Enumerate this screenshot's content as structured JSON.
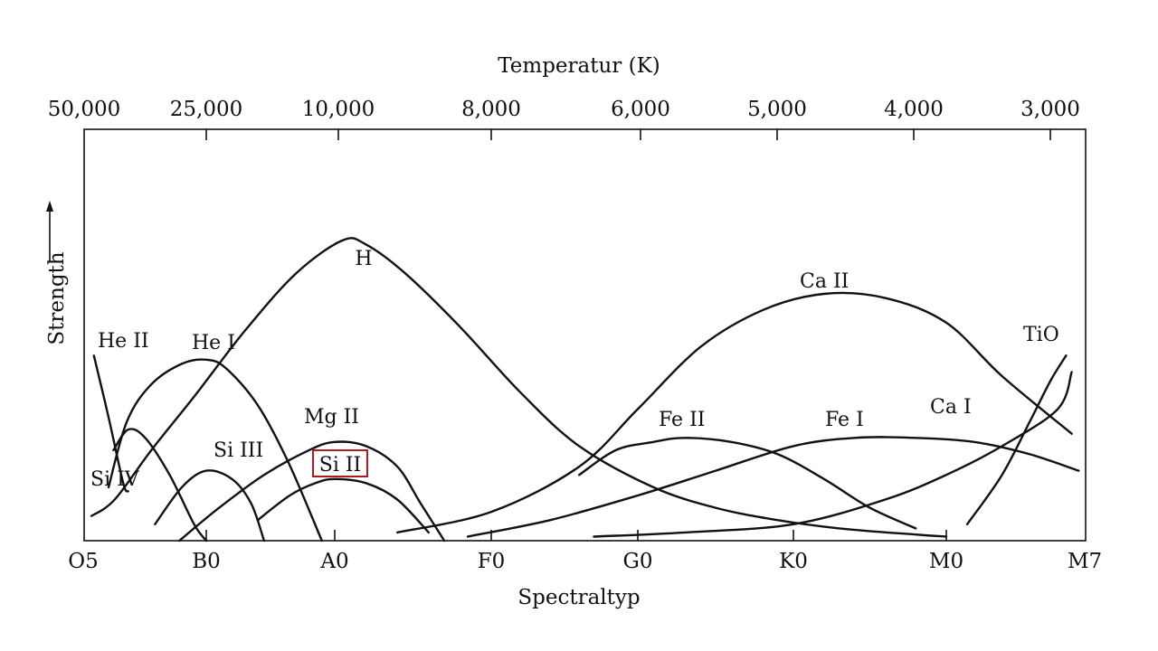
{
  "chart_data": {
    "type": "line",
    "title": "",
    "top_axis_title": "Temperatur (K)",
    "xlabel": "Spectraltyp",
    "ylabel": "Strength",
    "temperature_ticks": [
      "50,000",
      "25,000",
      "10,000",
      "8,000",
      "6,000",
      "5,000",
      "4,000",
      "3,000"
    ],
    "spectral_ticks": [
      "O5",
      "B0",
      "A0",
      "F0",
      "G0",
      "K0",
      "M0",
      "M7"
    ],
    "x_scale": "spectral subclass position (O5=0, B0=1, A0=2, F0=3, G0=4, K0=5, M0=6, M7=7)",
    "ylim": [
      0,
      1
    ],
    "highlighted_label": "Si II",
    "highlight_color": "#b01a1a",
    "series": [
      {
        "name": "He II",
        "x": [
          0.08,
          0.2,
          0.32,
          0.36
        ],
        "y": [
          0.45,
          0.3,
          0.14,
          0.12
        ]
      },
      {
        "name": "He I",
        "x": [
          0.2,
          0.35,
          0.55,
          0.8,
          1.0,
          1.15,
          1.4,
          1.64,
          1.9
        ],
        "y": [
          0.13,
          0.29,
          0.38,
          0.43,
          0.44,
          0.42,
          0.33,
          0.19,
          0.0
        ]
      },
      {
        "name": "Si IV",
        "x": [
          0.24,
          0.36,
          0.5,
          0.7,
          0.9,
          1.0
        ],
        "y": [
          0.22,
          0.27,
          0.25,
          0.16,
          0.04,
          0.0
        ]
      },
      {
        "name": "Si III",
        "x": [
          0.58,
          0.8,
          1.0,
          1.2,
          1.35,
          1.45
        ],
        "y": [
          0.04,
          0.13,
          0.17,
          0.15,
          0.09,
          0.0
        ]
      },
      {
        "name": "H",
        "x": [
          0.06,
          0.25,
          0.55,
          0.9,
          1.3,
          1.7,
          2.05,
          2.2,
          2.45,
          2.8,
          3.2,
          3.6,
          4.1,
          4.5,
          4.9,
          5.3,
          5.8,
          6.0
        ],
        "y": [
          0.06,
          0.1,
          0.22,
          0.35,
          0.51,
          0.65,
          0.73,
          0.72,
          0.65,
          0.52,
          0.36,
          0.23,
          0.13,
          0.08,
          0.05,
          0.03,
          0.015,
          0.01
        ]
      },
      {
        "name": "Mg II",
        "x": [
          0.78,
          1.1,
          1.45,
          1.8,
          2.0,
          2.2,
          2.4,
          2.55,
          2.7
        ],
        "y": [
          0.0,
          0.08,
          0.16,
          0.22,
          0.24,
          0.23,
          0.18,
          0.09,
          0.0
        ]
      },
      {
        "name": "Si II",
        "x": [
          1.4,
          1.65,
          1.85,
          2.0,
          2.2,
          2.4,
          2.6
        ],
        "y": [
          0.05,
          0.11,
          0.14,
          0.15,
          0.14,
          0.1,
          0.02
        ]
      },
      {
        "name": "Ca II",
        "x": [
          2.4,
          3.0,
          3.6,
          4.0,
          4.4,
          4.8,
          5.2,
          5.6,
          6.0,
          6.4,
          6.9
        ],
        "y": [
          0.02,
          0.07,
          0.18,
          0.32,
          0.47,
          0.56,
          0.6,
          0.59,
          0.53,
          0.4,
          0.26
        ]
      },
      {
        "name": "Fe II",
        "x": [
          3.6,
          3.85,
          4.1,
          4.3,
          4.6,
          4.9,
          5.2,
          5.5,
          5.8
        ],
        "y": [
          0.16,
          0.22,
          0.24,
          0.25,
          0.24,
          0.21,
          0.15,
          0.08,
          0.03
        ]
      },
      {
        "name": "Fe I",
        "x": [
          2.85,
          3.4,
          4.0,
          4.5,
          5.0,
          5.4,
          5.8,
          6.2,
          6.6,
          6.95
        ],
        "y": [
          0.01,
          0.05,
          0.11,
          0.17,
          0.23,
          0.25,
          0.25,
          0.24,
          0.21,
          0.17
        ]
      },
      {
        "name": "Ca I",
        "x": [
          3.7,
          4.3,
          5.0,
          5.6,
          6.0,
          6.4,
          6.8,
          6.9
        ],
        "y": [
          0.01,
          0.02,
          0.04,
          0.1,
          0.16,
          0.23,
          0.32,
          0.41
        ]
      },
      {
        "name": "TiO",
        "x": [
          6.15,
          6.4,
          6.6,
          6.75,
          6.86
        ],
        "y": [
          0.04,
          0.16,
          0.29,
          0.39,
          0.45
        ]
      }
    ],
    "curve_labels": [
      "He II",
      "He I",
      "Si IV",
      "Si III",
      "H",
      "Mg II",
      "Si II",
      "Ca II",
      "Fe II",
      "Fe I",
      "Ca I",
      "TiO"
    ]
  }
}
